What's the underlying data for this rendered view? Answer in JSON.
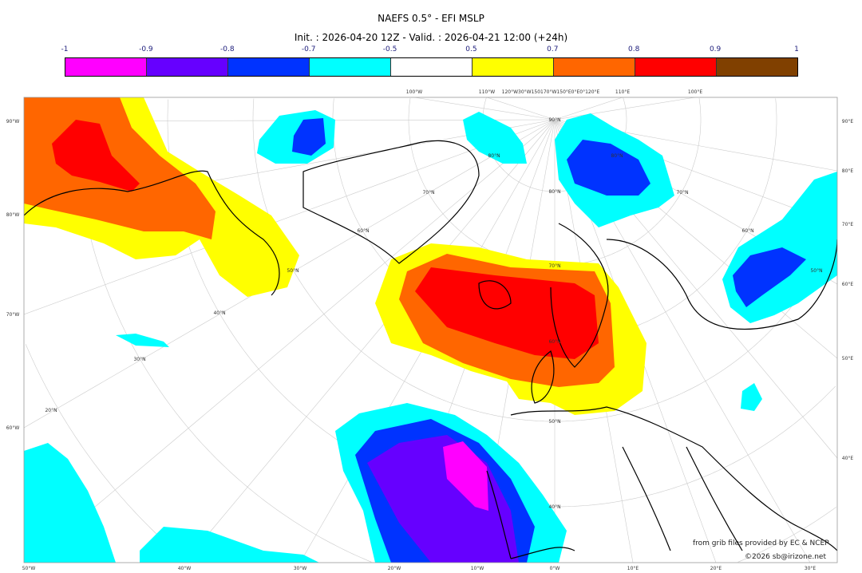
{
  "title": "NAEFS 0.5° - EFI MSLP",
  "subtitle": "Init. : 2026-04-20 12Z - Valid. : 2026-04-21 12:00 (+24h)",
  "colorbar": {
    "ticks": [
      "-1",
      "-0.9",
      "-0.8",
      "-0.7",
      "-0.5",
      "0.5",
      "0.7",
      "0.8",
      "0.9",
      "1"
    ],
    "colors": [
      "#ff00ff",
      "#6600ff",
      "#0033ff",
      "#00ffff",
      "#ffffff",
      "#ffff00",
      "#ff6600",
      "#ff0000",
      "#804000"
    ]
  },
  "axes": {
    "left": [
      "90°W",
      "80°W",
      "70°W",
      "60°W"
    ],
    "right": [
      "90°E",
      "80°E",
      "70°E",
      "60°E",
      "50°E",
      "40°E"
    ],
    "bottom": [
      "50°W",
      "40°W",
      "30°W",
      "20°W",
      "10°W",
      "0°W",
      "10°E",
      "20°E",
      "30°E"
    ],
    "top": [
      "100°W",
      "110°W",
      "120°W30°W150170°W150°E0°E0°120°E",
      "110°E",
      "100°E"
    ]
  },
  "latitude_labels": [
    "90°N",
    "80°N",
    "70°N",
    "60°N",
    "50°N",
    "40°N",
    "30°N",
    "20°N",
    "80°N",
    "70°N",
    "60°N",
    "50°N",
    "40°N",
    "70°N",
    "60°N",
    "50°N",
    "80°N"
  ],
  "credits": {
    "source": "from grib files provided by EC & NCEP",
    "copyright": "©2026 sb@irizone.net"
  }
}
